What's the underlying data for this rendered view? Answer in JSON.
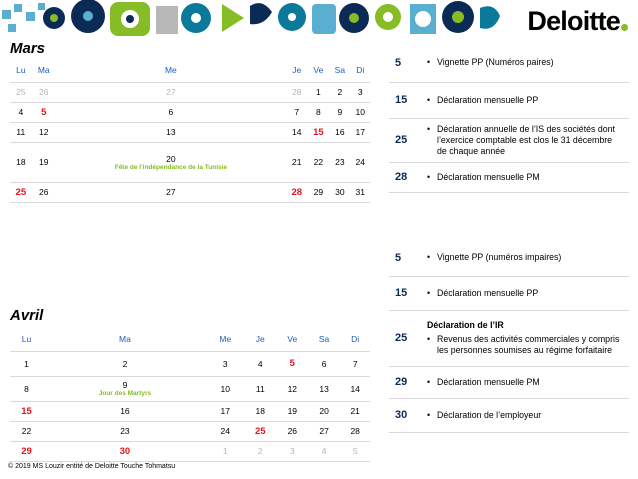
{
  "brand": {
    "name": "Deloitte",
    "accent": "#86bc25"
  },
  "weekdays": [
    "Lu",
    "Ma",
    "Me",
    "Je",
    "Ve",
    "Sa",
    "Di"
  ],
  "mars": {
    "title": "Mars",
    "rows": [
      [
        {
          "d": "25",
          "s": "muted"
        },
        {
          "d": "26",
          "s": "muted"
        },
        {
          "d": "27",
          "s": "muted"
        },
        {
          "d": "28",
          "s": "muted"
        },
        {
          "d": "1"
        },
        {
          "d": "2"
        },
        {
          "d": "3"
        }
      ],
      [
        {
          "d": "4"
        },
        {
          "d": "5",
          "s": "red"
        },
        {
          "d": "6"
        },
        {
          "d": "7"
        },
        {
          "d": "8"
        },
        {
          "d": "9"
        },
        {
          "d": "10"
        }
      ],
      [
        {
          "d": "11"
        },
        {
          "d": "12"
        },
        {
          "d": "13"
        },
        {
          "d": "14"
        },
        {
          "d": "15",
          "s": "red"
        },
        {
          "d": "16"
        },
        {
          "d": "17"
        }
      ],
      [
        {
          "d": "18"
        },
        {
          "d": "19"
        },
        {
          "d": "20",
          "holiday": "Fête de l'indépendance de la Tunisie"
        },
        {
          "d": "21"
        },
        {
          "d": "22"
        },
        {
          "d": "23"
        },
        {
          "d": "24"
        }
      ],
      [
        {
          "d": "25",
          "s": "red"
        },
        {
          "d": "26"
        },
        {
          "d": "27"
        },
        {
          "d": "28",
          "s": "red"
        },
        {
          "d": "29"
        },
        {
          "d": "30"
        },
        {
          "d": "31"
        }
      ]
    ]
  },
  "avril": {
    "title": "Avril",
    "rows": [
      [
        {
          "d": "1"
        },
        {
          "d": "2"
        },
        {
          "d": "3"
        },
        {
          "d": "4"
        },
        {
          "d": "5",
          "s": "red"
        },
        {
          "d": "6"
        },
        {
          "d": "7"
        }
      ],
      [
        {
          "d": "8"
        },
        {
          "d": "9",
          "holiday": "Jour des Martyrs"
        },
        {
          "d": "10"
        },
        {
          "d": "11"
        },
        {
          "d": "12"
        },
        {
          "d": "13"
        },
        {
          "d": "14"
        }
      ],
      [
        {
          "d": "15",
          "s": "red"
        },
        {
          "d": "16"
        },
        {
          "d": "17"
        },
        {
          "d": "18"
        },
        {
          "d": "19"
        },
        {
          "d": "20"
        },
        {
          "d": "21"
        }
      ],
      [
        {
          "d": "22"
        },
        {
          "d": "23"
        },
        {
          "d": "24"
        },
        {
          "d": "25",
          "s": "red"
        },
        {
          "d": "26"
        },
        {
          "d": "27"
        },
        {
          "d": "28"
        }
      ],
      [
        {
          "d": "29",
          "s": "red"
        },
        {
          "d": "30",
          "s": "red"
        },
        {
          "d": "1",
          "s": "muted"
        },
        {
          "d": "2",
          "s": "muted"
        },
        {
          "d": "3",
          "s": "muted"
        },
        {
          "d": "4",
          "s": "muted"
        },
        {
          "d": "5",
          "s": "muted"
        }
      ]
    ]
  },
  "mars_deadlines": [
    {
      "day": "5",
      "items": [
        "Vignette PP (Numéros paires)"
      ]
    },
    {
      "day": "15",
      "items": [
        "Déclaration mensuelle PP"
      ]
    },
    {
      "day": "25",
      "items": [
        "Déclaration annuelle de l’IS des sociétés dont l’exercice comptable est clos le 31 décembre de chaque année"
      ]
    },
    {
      "day": "28",
      "items": [
        "Déclaration mensuelle PM"
      ]
    }
  ],
  "avril_deadlines": [
    {
      "day": "5",
      "items": [
        "Vignette PP (numéros impaires)"
      ]
    },
    {
      "day": "15",
      "items": [
        "Déclaration mensuelle PP"
      ]
    },
    {
      "day": "25",
      "heading": "Déclaration de l’IR",
      "items": [
        "Revenus des activités commerciales y compris les personnes soumises au régime forfaitaire"
      ]
    },
    {
      "day": "29",
      "items": [
        "Déclaration mensuelle PM"
      ]
    },
    {
      "day": "30",
      "items": [
        "Déclaration de l’employeur"
      ]
    }
  ],
  "footer": "© 2019 MS Louzir entité de Deloitte Touche Tohmatsu"
}
